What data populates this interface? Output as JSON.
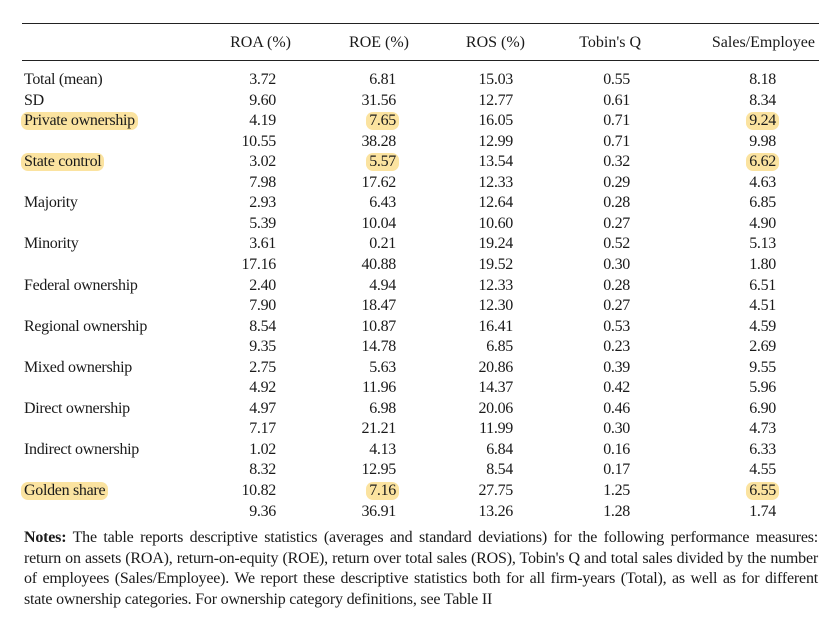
{
  "headers": [
    "ROA (%)",
    "ROE (%)",
    "ROS (%)",
    "Tobin's Q",
    "Sales/Employee"
  ],
  "rows": [
    {
      "label": "Total (mean)",
      "values": [
        "3.72",
        "6.81",
        "15.03",
        "0.55",
        "8.18"
      ]
    },
    {
      "label": "SD",
      "values": [
        "9.60",
        "31.56",
        "12.77",
        "0.61",
        "8.34"
      ]
    },
    {
      "label": "Private ownership",
      "label_highlight": true,
      "values": [
        "4.19",
        "7.65",
        "16.05",
        "0.71",
        "9.24"
      ],
      "highlight_cols": [
        1,
        4
      ]
    },
    {
      "label": "",
      "values": [
        "10.55",
        "38.28",
        "12.99",
        "0.71",
        "9.98"
      ]
    },
    {
      "label": "State control",
      "label_highlight": true,
      "values": [
        "3.02",
        "5.57",
        "13.54",
        "0.32",
        "6.62"
      ],
      "highlight_cols": [
        1,
        4
      ]
    },
    {
      "label": "",
      "values": [
        "7.98",
        "17.62",
        "12.33",
        "0.29",
        "4.63"
      ]
    },
    {
      "label": "Majority",
      "values": [
        "2.93",
        "6.43",
        "12.64",
        "0.28",
        "6.85"
      ]
    },
    {
      "label": "",
      "values": [
        "5.39",
        "10.04",
        "10.60",
        "0.27",
        "4.90"
      ]
    },
    {
      "label": "Minority",
      "values": [
        "3.61",
        "0.21",
        "19.24",
        "0.52",
        "5.13"
      ]
    },
    {
      "label": "",
      "values": [
        "17.16",
        "40.88",
        "19.52",
        "0.30",
        "1.80"
      ]
    },
    {
      "label": "Federal ownership",
      "values": [
        "2.40",
        "4.94",
        "12.33",
        "0.28",
        "6.51"
      ]
    },
    {
      "label": "",
      "values": [
        "7.90",
        "18.47",
        "12.30",
        "0.27",
        "4.51"
      ]
    },
    {
      "label": "Regional ownership",
      "values": [
        "8.54",
        "10.87",
        "16.41",
        "0.53",
        "4.59"
      ]
    },
    {
      "label": "",
      "values": [
        "9.35",
        "14.78",
        "6.85",
        "0.23",
        "2.69"
      ]
    },
    {
      "label": "Mixed ownership",
      "values": [
        "2.75",
        "5.63",
        "20.86",
        "0.39",
        "9.55"
      ]
    },
    {
      "label": "",
      "values": [
        "4.92",
        "11.96",
        "14.37",
        "0.42",
        "5.96"
      ]
    },
    {
      "label": "Direct ownership",
      "values": [
        "4.97",
        "6.98",
        "20.06",
        "0.46",
        "6.90"
      ]
    },
    {
      "label": "",
      "values": [
        "7.17",
        "21.21",
        "11.99",
        "0.30",
        "4.73"
      ]
    },
    {
      "label": "Indirect ownership",
      "values": [
        "1.02",
        "4.13",
        "6.84",
        "0.16",
        "6.33"
      ]
    },
    {
      "label": "",
      "values": [
        "8.32",
        "12.95",
        "8.54",
        "0.17",
        "4.55"
      ]
    },
    {
      "label": "Golden share",
      "label_highlight": true,
      "values": [
        "10.82",
        "7.16",
        "27.75",
        "1.25",
        "6.55"
      ],
      "highlight_cols": [
        1,
        4
      ]
    },
    {
      "label": "",
      "values": [
        "9.36",
        "36.91",
        "13.26",
        "1.28",
        "1.74"
      ]
    }
  ],
  "notes": {
    "heading": "Notes:",
    "text": " The table reports descriptive statistics (averages and standard deviations) for the following performance measures: return on assets (ROA), return-on-equity (ROE), return over total sales (ROS), Tobin's Q and total sales divided by the number of employees (Sales/Employee). We report these descriptive statistics both for all firm-years (Total), as well as for different state ownership categories. For ownership category definitions, see Table II"
  },
  "colors": {
    "highlight": "#fbe3a0"
  }
}
